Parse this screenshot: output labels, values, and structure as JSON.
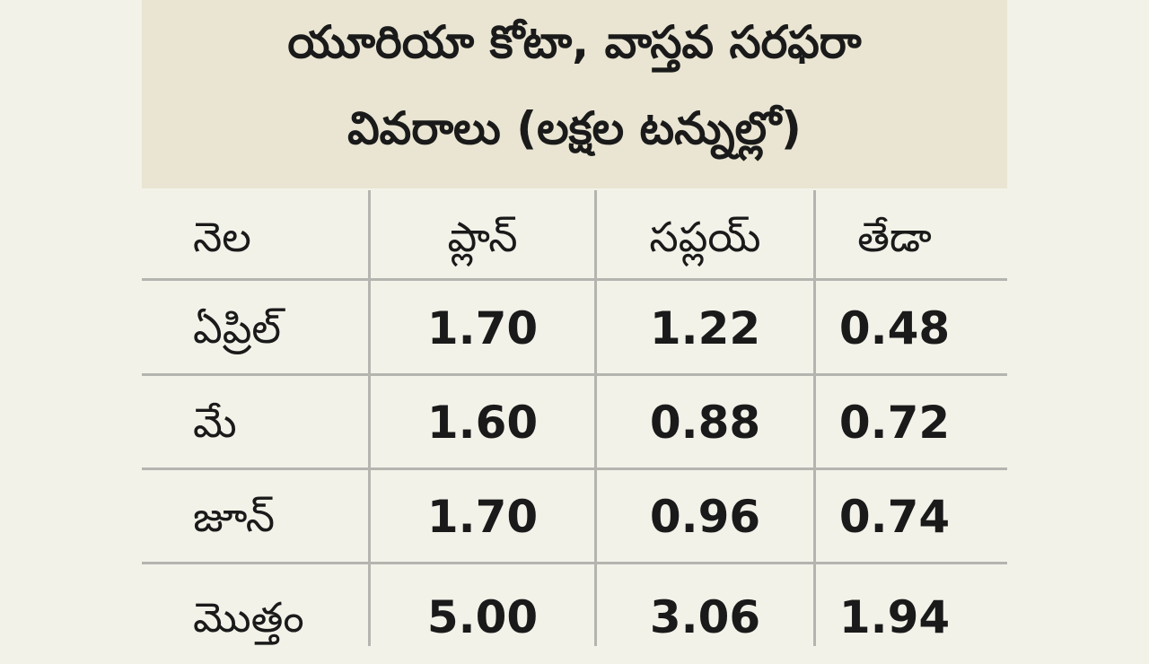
{
  "header": {
    "title_lines": [
      "యూరియా కోటా, వాస్తవ సరఫరా",
      "వివరాలు (లక్షల టన్నుల్లో)"
    ]
  },
  "table": {
    "columns": [
      "నెల",
      "ప్లాన్",
      "సప్లయ్",
      "తేడా"
    ],
    "rows": [
      [
        "ఏప్రిల్",
        "1.70",
        "1.22",
        "0.48"
      ],
      [
        "మే",
        "1.60",
        "0.88",
        "0.72"
      ],
      [
        "జూన్",
        "1.70",
        "0.96",
        "0.74"
      ],
      [
        "మొత్తం",
        "5.00",
        "3.06",
        "1.94"
      ]
    ]
  }
}
